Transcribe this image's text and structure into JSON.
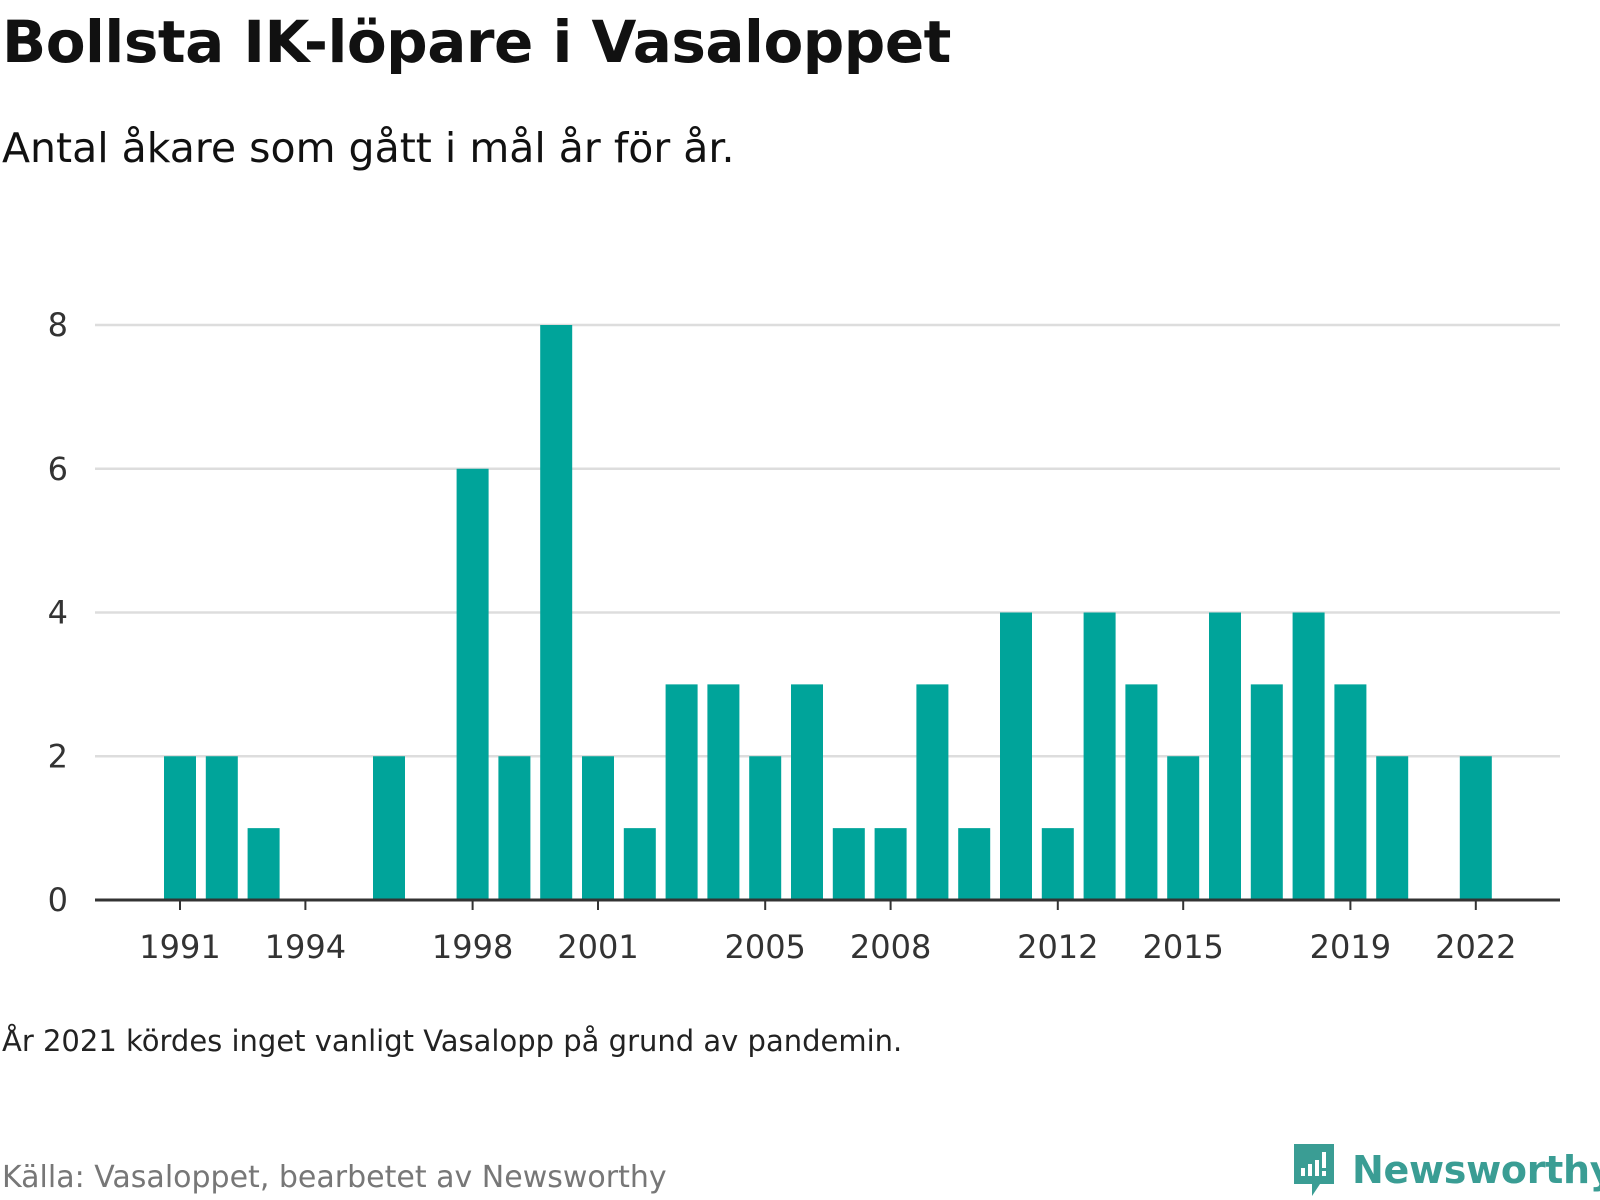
{
  "header": {
    "title": "Bollsta IK-löpare i Vasaloppet",
    "subtitle": "Antal åkare som gått i mål år för år."
  },
  "footer": {
    "note": "År 2021 kördes inget vanligt Vasalopp på grund av pandemin.",
    "source": "Källa: Vasaloppet, bearbetet av Newsworthy",
    "brand": "Newsworthy"
  },
  "colors": {
    "bar": "#00a49a",
    "grid": "#dddddd",
    "axis": "#333333",
    "brand": "#3a9d94"
  },
  "chart_data": {
    "type": "bar",
    "title": "Bollsta IK-löpare i Vasaloppet",
    "subtitle": "Antal åkare som gått i mål år för år.",
    "xlabel": "",
    "ylabel": "",
    "x": [
      1991,
      1992,
      1993,
      1994,
      1995,
      1996,
      1997,
      1998,
      1999,
      2000,
      2001,
      2002,
      2003,
      2004,
      2005,
      2006,
      2007,
      2008,
      2009,
      2010,
      2011,
      2012,
      2013,
      2014,
      2015,
      2016,
      2017,
      2018,
      2019,
      2020,
      2021,
      2022
    ],
    "values": [
      2,
      2,
      1,
      0,
      0,
      2,
      0,
      6,
      2,
      8,
      2,
      1,
      3,
      3,
      2,
      3,
      1,
      1,
      3,
      1,
      4,
      1,
      4,
      3,
      2,
      4,
      3,
      4,
      3,
      2,
      0,
      2
    ],
    "x_ticks": [
      1991,
      1994,
      1998,
      2001,
      2005,
      2008,
      2012,
      2015,
      2019,
      2022
    ],
    "y_ticks": [
      0,
      2,
      4,
      6,
      8
    ],
    "ylim": [
      0,
      8
    ],
    "grid": true,
    "legend": "none"
  }
}
